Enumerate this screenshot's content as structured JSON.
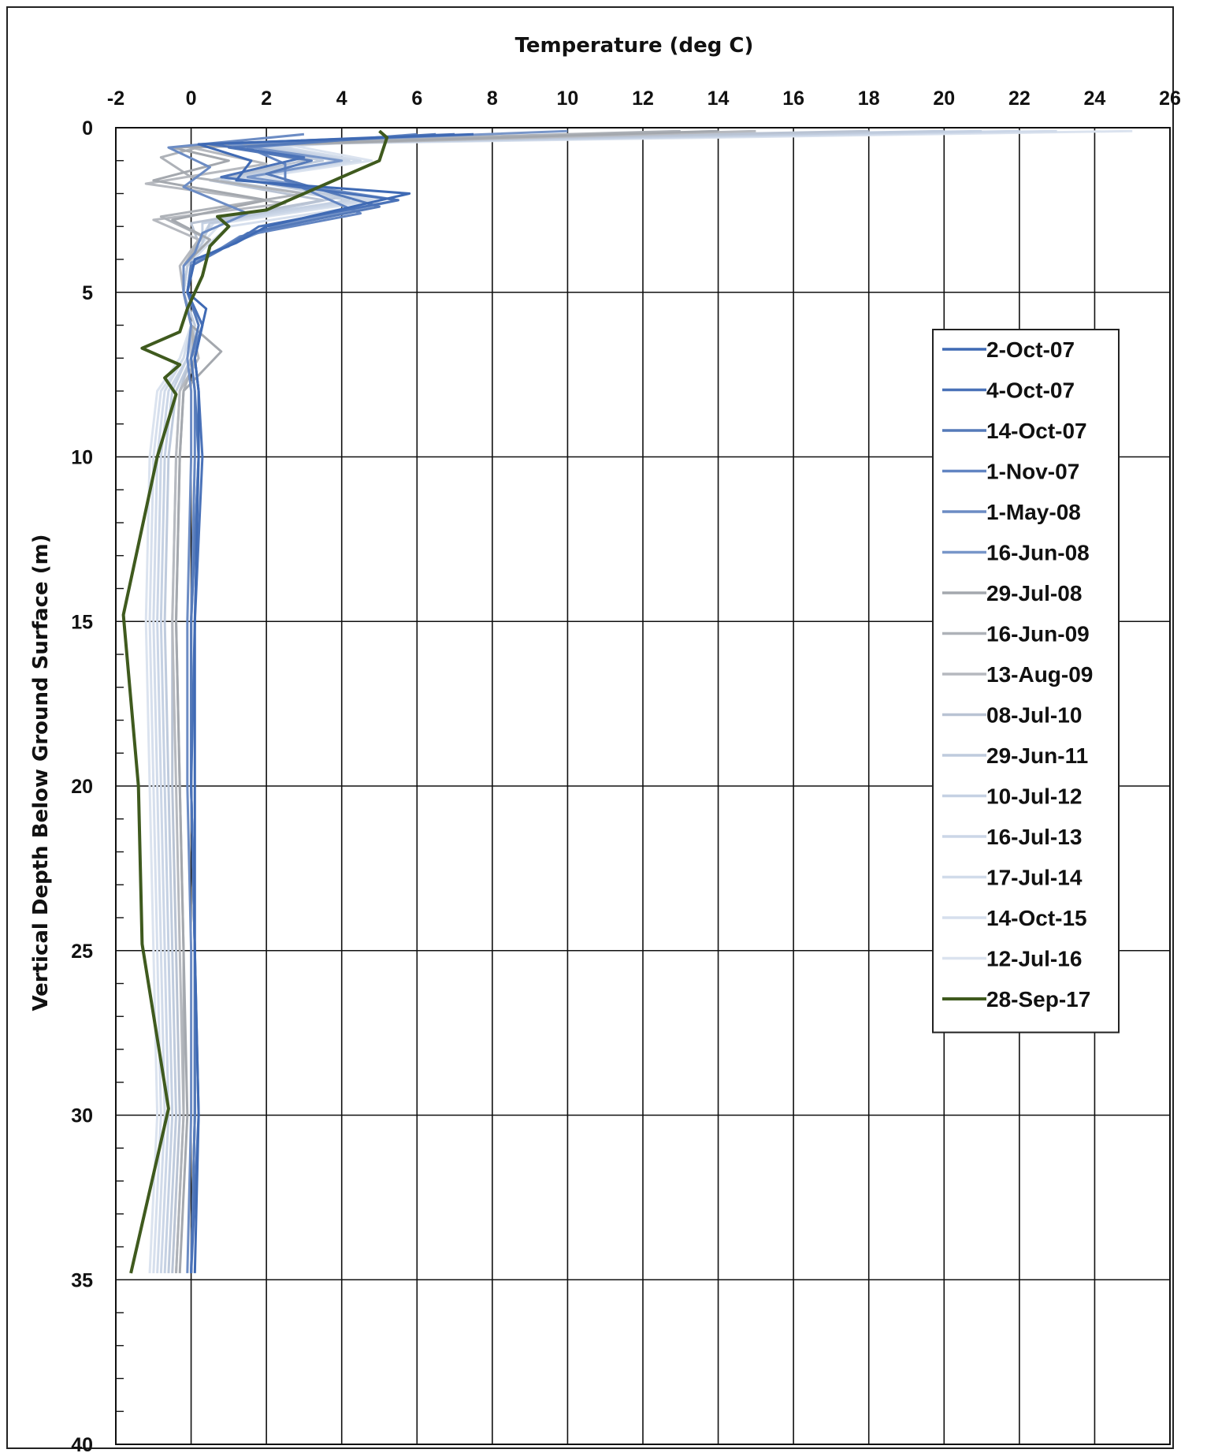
{
  "chart_data": {
    "type": "line",
    "title": "",
    "xlabel": "Temperature (deg C)",
    "ylabel": "Vertical Depth Below Ground Surface (m)",
    "xlim": [
      -2,
      26
    ],
    "ylim": [
      0,
      40
    ],
    "y_inverted": true,
    "x_axis_position": "top",
    "grid": true,
    "legend_position": "right",
    "x_ticks": [
      "-2",
      "0",
      "2",
      "4",
      "6",
      "8",
      "10",
      "12",
      "14",
      "16",
      "18",
      "20",
      "22",
      "24",
      "26"
    ],
    "y_ticks": [
      "0",
      "5",
      "10",
      "15",
      "20",
      "25",
      "30",
      "35",
      "40"
    ],
    "series": [
      {
        "name": "2-Oct-07",
        "color": "#3f6ab4",
        "temps": [
          7.5,
          0.2,
          1.6,
          1.2,
          5.8,
          2.0,
          1.2,
          0.1,
          -0.1,
          0.4,
          0.1,
          0.2,
          0.2,
          0.1,
          0.1,
          0.1,
          0.2,
          0.1
        ],
        "depths": [
          0.2,
          0.5,
          1.0,
          1.6,
          2.0,
          3.0,
          3.5,
          4.0,
          5.0,
          5.5,
          7.0,
          8.0,
          10.0,
          15.0,
          20.0,
          25.0,
          30.0,
          34.8
        ]
      },
      {
        "name": "4-Oct-07",
        "color": "#4a72b8",
        "temps": [
          7.0,
          0.5,
          3.0,
          0.8,
          5.5,
          1.8,
          1.0,
          0.1,
          -0.1,
          0.3,
          0.1,
          0.2,
          0.3,
          0.1,
          0.0,
          0.1,
          0.2,
          0.0
        ],
        "depths": [
          0.2,
          0.5,
          0.9,
          1.5,
          2.2,
          3.0,
          3.6,
          4.0,
          5.0,
          6.0,
          7.0,
          8.0,
          10.0,
          15.0,
          20.0,
          25.0,
          30.0,
          34.8
        ]
      },
      {
        "name": "14-Oct-07",
        "color": "#557ab9",
        "temps": [
          6.5,
          1.0,
          3.2,
          2.0,
          5.0,
          1.5,
          0.8,
          0.0,
          -0.1,
          0.2,
          0.0,
          0.1,
          0.2,
          0.0,
          0.0,
          0.1,
          0.1,
          0.0
        ],
        "depths": [
          0.2,
          0.6,
          1.0,
          1.4,
          2.4,
          3.2,
          3.7,
          4.2,
          5.0,
          6.0,
          7.0,
          8.0,
          10.0,
          15.0,
          20.0,
          25.0,
          30.0,
          34.8
        ]
      },
      {
        "name": "1-Nov-07",
        "color": "#6285c2",
        "temps": [
          6.0,
          1.5,
          2.5,
          2.5,
          4.5,
          1.3,
          0.6,
          0.0,
          -0.1,
          0.3,
          0.0,
          0.1,
          0.1,
          0.0,
          0.0,
          0.1,
          0.1,
          0.0
        ],
        "depths": [
          0.2,
          0.6,
          1.1,
          1.6,
          2.6,
          3.3,
          3.8,
          4.2,
          5.0,
          6.0,
          7.0,
          8.0,
          10.0,
          15.0,
          20.0,
          25.0,
          30.0,
          34.8
        ]
      },
      {
        "name": "1-May-08",
        "color": "#6c8cc4",
        "temps": [
          3.0,
          -0.6,
          0.5,
          -0.2,
          1.5,
          0.3,
          0.1,
          -0.2,
          -0.2,
          0.0,
          -0.1,
          0.0,
          0.0,
          -0.1,
          -0.1,
          0.0,
          0.0,
          -0.1
        ],
        "depths": [
          0.2,
          0.6,
          1.2,
          1.8,
          2.6,
          3.2,
          3.8,
          4.2,
          5.0,
          6.0,
          7.0,
          8.0,
          10.0,
          15.0,
          20.0,
          25.0,
          30.0,
          34.8
        ]
      },
      {
        "name": "16-Jun-08",
        "color": "#7896c9",
        "temps": [
          10.0,
          1.0,
          4.0,
          1.5,
          5.5,
          2.2,
          0.9,
          0.0,
          -0.1,
          0.3,
          0.1,
          0.2,
          0.2,
          0.0,
          0.0,
          0.1,
          0.1,
          0.0
        ],
        "depths": [
          0.1,
          0.5,
          1.0,
          1.5,
          2.2,
          3.0,
          3.6,
          4.1,
          5.0,
          6.0,
          7.0,
          8.0,
          10.0,
          15.0,
          20.0,
          25.0,
          30.0,
          34.8
        ]
      },
      {
        "name": "29-Jul-08",
        "color": "#a4a8ae",
        "temps": [
          14.0,
          -0.5,
          1.0,
          -1.0,
          2.0,
          -0.5,
          0.5,
          -0.2,
          -0.2,
          0.0,
          0.8,
          -0.2,
          -0.3,
          -0.4,
          -0.3,
          -0.2,
          -0.1,
          -0.3
        ],
        "depths": [
          0.1,
          0.6,
          1.0,
          1.6,
          2.2,
          2.8,
          3.4,
          4.2,
          5.0,
          6.0,
          6.8,
          8.0,
          10.0,
          15.0,
          20.0,
          25.0,
          30.0,
          34.8
        ]
      },
      {
        "name": "16-Jun-09",
        "color": "#aeb2b8",
        "temps": [
          13.0,
          0.5,
          -0.8,
          0.0,
          3.0,
          -0.8,
          0.3,
          -0.2,
          -0.2,
          0.0,
          0.1,
          -0.2,
          -0.3,
          -0.4,
          -0.3,
          -0.2,
          -0.2,
          -0.4
        ],
        "depths": [
          0.1,
          0.5,
          0.9,
          1.5,
          2.0,
          2.7,
          3.3,
          4.2,
          5.0,
          6.0,
          7.0,
          8.0,
          10.0,
          15.0,
          20.0,
          25.0,
          30.0,
          34.8
        ]
      },
      {
        "name": "13-Aug-09",
        "color": "#b6b9bf",
        "temps": [
          15.0,
          0.0,
          2.0,
          -1.2,
          2.5,
          -1.0,
          0.2,
          -0.3,
          -0.2,
          0.0,
          0.2,
          -0.3,
          -0.4,
          -0.5,
          -0.4,
          -0.3,
          -0.2,
          -0.4
        ],
        "depths": [
          0.1,
          0.6,
          1.1,
          1.7,
          2.3,
          2.8,
          3.4,
          4.2,
          5.0,
          6.0,
          7.0,
          8.0,
          10.0,
          15.0,
          20.0,
          25.0,
          30.0,
          34.8
        ]
      },
      {
        "name": "08-Jul-10",
        "color": "#b9c3d3",
        "temps": [
          18.0,
          0.8,
          3.0,
          0.5,
          3.5,
          0.0,
          0.2,
          -0.2,
          -0.2,
          0.0,
          0.0,
          -0.3,
          -0.4,
          -0.5,
          -0.5,
          -0.4,
          -0.3,
          -0.5
        ],
        "depths": [
          0.1,
          0.5,
          1.0,
          1.6,
          2.2,
          2.9,
          3.5,
          4.2,
          5.0,
          6.0,
          7.0,
          8.0,
          10.0,
          15.0,
          20.0,
          25.0,
          30.0,
          34.8
        ]
      },
      {
        "name": "29-Jun-11",
        "color": "#bfcbdd",
        "temps": [
          20.0,
          1.2,
          3.5,
          1.0,
          4.0,
          0.5,
          0.3,
          -0.1,
          -0.2,
          0.1,
          0.0,
          -0.4,
          -0.6,
          -0.7,
          -0.6,
          -0.5,
          -0.4,
          -0.6
        ],
        "depths": [
          0.1,
          0.5,
          1.0,
          1.5,
          2.1,
          2.9,
          3.5,
          4.2,
          5.0,
          6.0,
          7.0,
          8.0,
          10.0,
          15.0,
          20.0,
          25.0,
          30.0,
          34.8
        ]
      },
      {
        "name": "10-Jul-12",
        "color": "#c5d1e3",
        "temps": [
          21.0,
          1.5,
          4.0,
          0.8,
          4.2,
          0.3,
          0.3,
          -0.1,
          -0.2,
          0.1,
          -0.1,
          -0.5,
          -0.7,
          -0.8,
          -0.7,
          -0.6,
          -0.5,
          -0.7
        ],
        "depths": [
          0.1,
          0.5,
          1.0,
          1.6,
          2.2,
          2.9,
          3.5,
          4.2,
          5.0,
          6.0,
          7.0,
          8.0,
          10.0,
          15.0,
          20.0,
          25.0,
          30.0,
          34.8
        ]
      },
      {
        "name": "16-Jul-13",
        "color": "#cbd6e7",
        "temps": [
          22.0,
          1.8,
          4.2,
          1.2,
          4.5,
          0.5,
          0.2,
          -0.1,
          -0.2,
          0.0,
          -0.1,
          -0.6,
          -0.8,
          -0.9,
          -0.8,
          -0.7,
          -0.6,
          -0.8
        ],
        "depths": [
          0.1,
          0.5,
          1.0,
          1.5,
          2.2,
          2.9,
          3.5,
          4.2,
          5.0,
          6.0,
          7.0,
          8.0,
          10.0,
          15.0,
          20.0,
          25.0,
          30.0,
          34.8
        ]
      },
      {
        "name": "17-Jul-14",
        "color": "#d1dbea",
        "temps": [
          23.0,
          2.0,
          4.5,
          1.5,
          4.8,
          0.6,
          0.2,
          -0.2,
          -0.2,
          0.0,
          -0.2,
          -0.7,
          -0.9,
          -1.0,
          -0.9,
          -0.8,
          -0.7,
          -0.9
        ],
        "depths": [
          0.1,
          0.5,
          1.0,
          1.5,
          2.2,
          2.9,
          3.5,
          4.2,
          5.0,
          6.0,
          7.0,
          8.0,
          10.0,
          15.0,
          20.0,
          25.0,
          30.0,
          34.8
        ]
      },
      {
        "name": "14-Oct-15",
        "color": "#d6dfed",
        "temps": [
          8.0,
          2.0,
          3.8,
          2.0,
          5.0,
          1.0,
          0.4,
          -0.1,
          -0.2,
          0.0,
          -0.2,
          -0.8,
          -1.0,
          -1.1,
          -1.0,
          -0.9,
          -0.8,
          -1.0
        ],
        "depths": [
          0.2,
          0.6,
          1.0,
          1.5,
          2.3,
          3.0,
          3.6,
          4.2,
          5.0,
          6.0,
          7.0,
          8.0,
          10.0,
          15.0,
          20.0,
          25.0,
          30.0,
          34.8
        ]
      },
      {
        "name": "12-Jul-16",
        "color": "#dbe3ef",
        "temps": [
          25.0,
          2.5,
          4.8,
          1.8,
          5.0,
          0.8,
          0.3,
          -0.1,
          -0.2,
          0.0,
          -0.3,
          -0.9,
          -1.1,
          -1.2,
          -1.1,
          -1.0,
          -0.9,
          -1.1
        ],
        "depths": [
          0.1,
          0.5,
          1.0,
          1.5,
          2.2,
          2.9,
          3.5,
          4.2,
          5.0,
          6.0,
          7.0,
          8.0,
          10.0,
          15.0,
          20.0,
          25.0,
          30.0,
          34.8
        ]
      },
      {
        "name": "28-Sep-17",
        "color": "#3f5a1e",
        "temps": [
          5.0,
          5.2,
          5.0,
          4.0,
          2.0,
          0.7,
          1.0,
          0.5,
          0.3,
          -0.1,
          -0.3,
          -1.3,
          -0.3,
          -0.7,
          -0.4,
          -0.9,
          -1.8,
          -1.4,
          -1.3,
          -0.6,
          -1.6
        ],
        "depths": [
          0.1,
          0.3,
          1.0,
          1.5,
          2.5,
          2.7,
          3.0,
          3.6,
          4.5,
          5.5,
          6.2,
          6.7,
          7.2,
          7.6,
          8.1,
          10.0,
          14.8,
          20.0,
          24.8,
          29.8,
          34.8
        ]
      }
    ]
  }
}
